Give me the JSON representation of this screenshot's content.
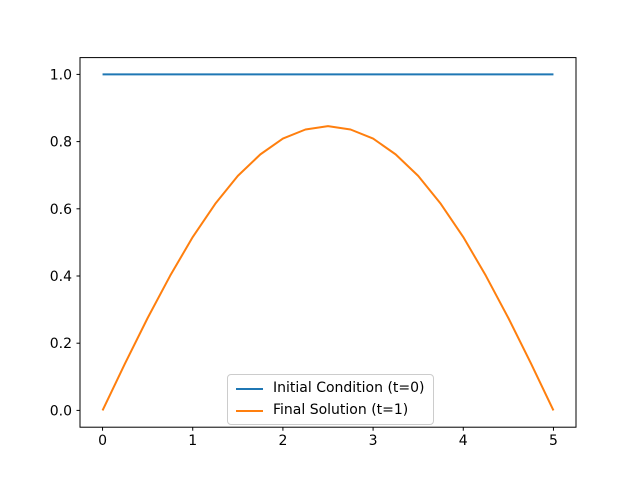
{
  "figure": {
    "background_color": "#ffffff",
    "spine_color": "#000000",
    "tick_color": "#000000"
  },
  "chart_data": {
    "type": "line",
    "title": "",
    "xlabel": "",
    "ylabel": "",
    "grid": false,
    "xlim": [
      -0.25,
      5.25
    ],
    "ylim": [
      -0.05,
      1.05
    ],
    "x_ticks": [
      0,
      1,
      2,
      3,
      4,
      5
    ],
    "x_tick_labels": [
      "0",
      "1",
      "2",
      "3",
      "4",
      "5"
    ],
    "y_ticks": [
      0.0,
      0.2,
      0.4,
      0.6,
      0.8,
      1.0
    ],
    "y_tick_labels": [
      "0.0",
      "0.2",
      "0.4",
      "0.6",
      "0.8",
      "1.0"
    ],
    "legend": {
      "position": "lower center",
      "border_color": "#cccccc",
      "background_color": "rgba(255,255,255,0.8)"
    },
    "series": [
      {
        "name": "Initial Condition (t=0)",
        "color": "#1f77b4",
        "x": [
          0,
          5
        ],
        "y": [
          1.0,
          1.0
        ]
      },
      {
        "name": "Final Solution (t=1)",
        "color": "#ff7f0e",
        "x": [
          0,
          0.25,
          0.5,
          0.75,
          1.0,
          1.25,
          1.5,
          1.75,
          2.0,
          2.25,
          2.5,
          2.75,
          3.0,
          3.25,
          3.5,
          3.75,
          4.0,
          4.25,
          4.5,
          4.75,
          5.0
        ],
        "y": [
          0.0,
          0.14,
          0.275,
          0.401,
          0.516,
          0.615,
          0.698,
          0.762,
          0.809,
          0.836,
          0.846,
          0.836,
          0.809,
          0.762,
          0.698,
          0.615,
          0.516,
          0.401,
          0.275,
          0.14,
          0.0
        ]
      }
    ]
  }
}
